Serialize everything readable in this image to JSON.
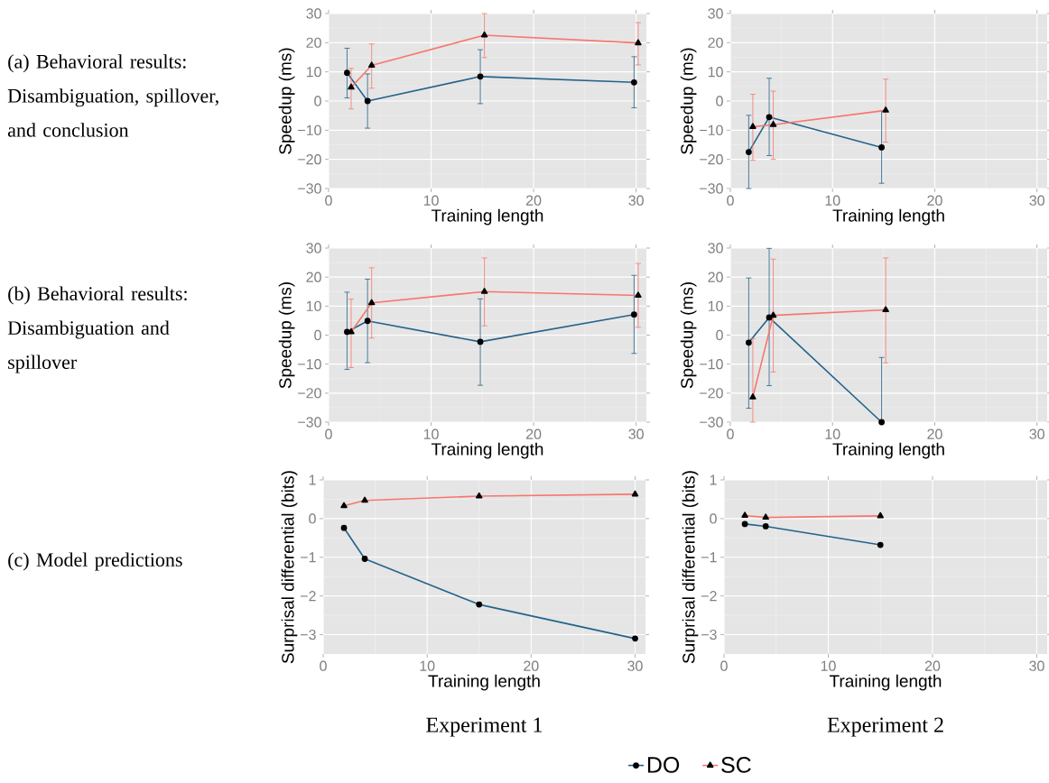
{
  "chart_data": [
    {
      "type": "line",
      "title": "(a) Behavioral results: Disambiguation, spillover, and conclusion",
      "xlabel": "Training length",
      "ylabel": "Speedup (ms)",
      "xlim": [
        0,
        31
      ],
      "ylim": [
        -30,
        30
      ],
      "xticks": [
        0,
        10,
        20,
        30
      ],
      "yticks": [
        {
          "value": -30,
          "label": "−30"
        },
        {
          "value": -20,
          "label": "−20"
        },
        {
          "value": -10,
          "label": "−10"
        },
        0,
        10,
        20,
        30
      ],
      "grid": true,
      "series": [
        {
          "color": "#23638b",
          "marker": "circle",
          "x": [
            1.8,
            3.8,
            14.8,
            29.8
          ],
          "values": [
            9.7,
            0,
            8.4,
            6.4
          ],
          "errors": [
            [
              1.1,
              18.1
            ],
            [
              -9.3,
              9.3
            ],
            [
              -0.9,
              17.6
            ],
            [
              -2.3,
              15.2
            ]
          ]
        },
        {
          "color": "#f8766d",
          "marker": "triangle",
          "x": [
            2.2,
            4.2,
            15.2,
            30.2
          ],
          "values": [
            4.7,
            12.2,
            22.6,
            19.9
          ],
          "errors": [
            [
              -2.7,
              11.2
            ],
            [
              4.4,
              19.6
            ],
            [
              14.9,
              30
            ],
            [
              12.4,
              26.9
            ]
          ]
        }
      ]
    },
    {
      "type": "line",
      "xlabel": "Training length",
      "ylabel": "Speedup (ms)",
      "xlim": [
        0,
        31
      ],
      "ylim": [
        -30,
        30
      ],
      "xticks": [
        0,
        10,
        20,
        30
      ],
      "yticks": [
        {
          "value": -30,
          "label": "−30"
        },
        {
          "value": -20,
          "label": "−20"
        },
        {
          "value": -10,
          "label": "−10"
        },
        0,
        10,
        20,
        30
      ],
      "grid": true,
      "series": [
        {
          "color": "#23638b",
          "marker": "circle",
          "x": [
            1.8,
            3.8,
            14.8
          ],
          "values": [
            -17.5,
            -5.5,
            -15.9
          ],
          "errors": [
            [
              -30,
              -4.9
            ],
            [
              -18.7,
              7.8
            ],
            [
              -28.2,
              -3.5
            ]
          ]
        },
        {
          "color": "#f8766d",
          "marker": "triangle",
          "x": [
            2.2,
            4.2,
            15.2
          ],
          "values": [
            -8.8,
            -8.1,
            -3.2
          ],
          "errors": [
            [
              -20.3,
              2.3
            ],
            [
              -20,
              3.4
            ],
            [
              -14.1,
              7.5
            ]
          ]
        }
      ]
    },
    {
      "type": "line",
      "title": "(b) Behavioral results: Disambiguation and spillover",
      "xlabel": "Training length",
      "ylabel": "Speedup (ms)",
      "xlim": [
        0,
        31
      ],
      "ylim": [
        -30,
        30
      ],
      "xticks": [
        0,
        10,
        20,
        30
      ],
      "yticks": [
        {
          "value": -30,
          "label": "−30"
        },
        {
          "value": -20,
          "label": "−20"
        },
        {
          "value": -10,
          "label": "−10"
        },
        0,
        10,
        20,
        30
      ],
      "grid": true,
      "series": [
        {
          "color": "#23638b",
          "marker": "circle",
          "x": [
            1.8,
            3.8,
            14.8,
            29.8
          ],
          "values": [
            1.1,
            4.9,
            -2.3,
            7.1
          ],
          "errors": [
            [
              -11.8,
              14.8
            ],
            [
              -9.5,
              19.3
            ],
            [
              -17.3,
              12.5
            ],
            [
              -6.3,
              20.6
            ]
          ]
        },
        {
          "color": "#f8766d",
          "marker": "triangle",
          "x": [
            2.2,
            4.2,
            15.2,
            30.2
          ],
          "values": [
            1.1,
            11.1,
            15,
            13.7
          ],
          "errors": [
            [
              -11.2,
              12.4
            ],
            [
              -1,
              23.2
            ],
            [
              3.2,
              26.6
            ],
            [
              2.7,
              24.7
            ]
          ]
        }
      ]
    },
    {
      "type": "line",
      "xlabel": "Training length",
      "ylabel": "Speedup (ms)",
      "xlim": [
        0,
        31
      ],
      "ylim": [
        -30,
        30
      ],
      "xticks": [
        0,
        10,
        20,
        30
      ],
      "yticks": [
        {
          "value": -30,
          "label": "−30"
        },
        {
          "value": -20,
          "label": "−20"
        },
        {
          "value": -10,
          "label": "−10"
        },
        0,
        10,
        20,
        30
      ],
      "grid": true,
      "series": [
        {
          "color": "#23638b",
          "marker": "circle",
          "x": [
            1.8,
            3.8,
            14.8
          ],
          "values": [
            -2.6,
            6.1,
            -30
          ],
          "errors": [
            [
              -25.2,
              19.7
            ],
            [
              -17.4,
              29.9
            ],
            [
              -30,
              -7.7
            ]
          ]
        },
        {
          "color": "#f8766d",
          "marker": "triangle",
          "x": [
            2.2,
            4.2,
            15.2
          ],
          "values": [
            -21.4,
            6.8,
            8.7
          ],
          "errors": [
            [
              -30,
              -1.2
            ],
            [
              -12.7,
              26.2
            ],
            [
              -9.6,
              26.6
            ]
          ]
        }
      ]
    },
    {
      "type": "line",
      "title": "(c) Model predictions",
      "xlabel": "Training length",
      "ylabel": "Surprisal differential (bits)",
      "annotations": [
        "Experiment 1"
      ],
      "legend": "bottom",
      "xlim": [
        0,
        31
      ],
      "ylim": [
        -3.5,
        1
      ],
      "xticks": [
        0,
        10,
        20,
        30
      ],
      "yticks": [
        {
          "value": -3,
          "label": "−3"
        },
        {
          "value": -2,
          "label": "−2"
        },
        {
          "value": -1,
          "label": "−1"
        },
        0,
        1
      ],
      "grid": true,
      "series": [
        {
          "name": "DO",
          "color": "#23638b",
          "marker": "circle",
          "x": [
            2,
            4,
            15,
            30
          ],
          "values": [
            -0.24,
            -1.04,
            -2.22,
            -3.1
          ]
        },
        {
          "name": "SC",
          "color": "#f8766d",
          "marker": "triangle",
          "x": [
            2,
            4,
            15,
            30
          ],
          "values": [
            0.33,
            0.47,
            0.58,
            0.63
          ]
        }
      ]
    },
    {
      "type": "line",
      "xlabel": "Training length",
      "ylabel": "Surprisal differential (bits)",
      "annotations": [
        "Experiment 2"
      ],
      "xlim": [
        0,
        31
      ],
      "ylim": [
        -3.5,
        1
      ],
      "xticks": [
        0,
        10,
        20,
        30
      ],
      "yticks": [
        {
          "value": -3,
          "label": "−3"
        },
        {
          "value": -2,
          "label": "−2"
        },
        {
          "value": -1,
          "label": "−1"
        },
        0,
        1
      ],
      "grid": true,
      "series": [
        {
          "color": "#23638b",
          "marker": "circle",
          "x": [
            2,
            4,
            15
          ],
          "values": [
            -0.14,
            -0.2,
            -0.68
          ]
        },
        {
          "color": "#f8766d",
          "marker": "triangle",
          "x": [
            2,
            4,
            15
          ],
          "values": [
            0.08,
            0.03,
            0.07
          ]
        }
      ]
    }
  ]
}
